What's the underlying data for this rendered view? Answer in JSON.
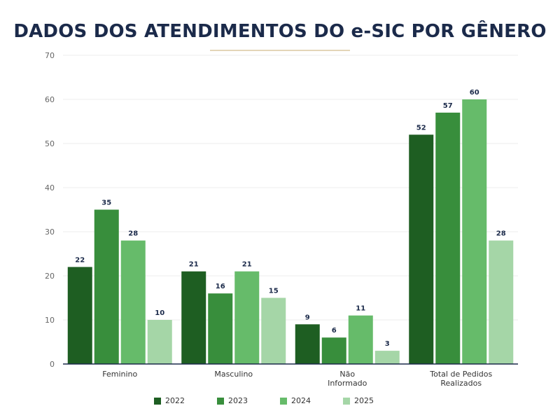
{
  "chart_data": {
    "type": "bar",
    "title": "DADOS DOS ATENDIMENTOS DO e-SIC POR GÊNERO",
    "categories": [
      [
        "Feminino"
      ],
      [
        "Masculino"
      ],
      [
        "Não",
        "Informado"
      ],
      [
        "Total de Pedidos",
        "Realizados"
      ]
    ],
    "series": [
      {
        "name": "2022",
        "color": "#1e5e22",
        "values": [
          22,
          21,
          9,
          52
        ]
      },
      {
        "name": "2023",
        "color": "#388e3c",
        "values": [
          35,
          16,
          6,
          57
        ]
      },
      {
        "name": "2024",
        "color": "#66bb6a",
        "values": [
          28,
          21,
          11,
          60
        ]
      },
      {
        "name": "2025",
        "color": "#a5d6a7",
        "values": [
          10,
          15,
          3,
          28
        ]
      }
    ],
    "ylim": [
      0,
      70
    ],
    "yticks": [
      0,
      10,
      20,
      30,
      40,
      50,
      60,
      70
    ],
    "grid": true,
    "legend_position": "bottom"
  }
}
